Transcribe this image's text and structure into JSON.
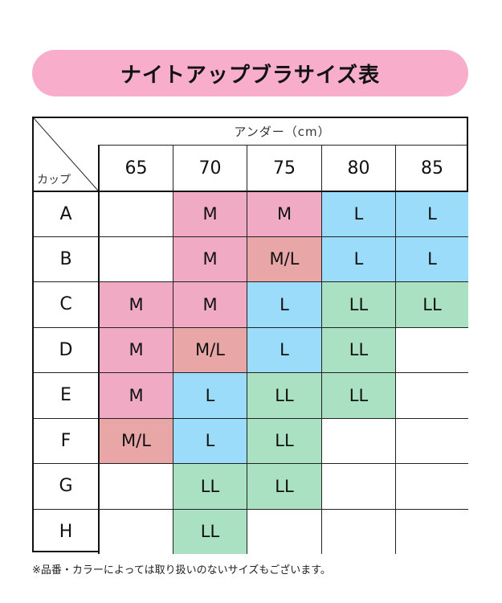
{
  "title": "ナイトアップブラサイズ表",
  "header": {
    "corner_label": "カップ",
    "under_label": "アンダー（cm）",
    "columns": [
      "65",
      "70",
      "75",
      "80",
      "85"
    ]
  },
  "rows": [
    {
      "cup": "A",
      "sizes": [
        "",
        "M",
        "M",
        "L",
        "L"
      ]
    },
    {
      "cup": "B",
      "sizes": [
        "",
        "M",
        "M/L",
        "L",
        "L"
      ]
    },
    {
      "cup": "C",
      "sizes": [
        "M",
        "M",
        "L",
        "LL",
        "LL"
      ]
    },
    {
      "cup": "D",
      "sizes": [
        "M",
        "M/L",
        "L",
        "LL",
        ""
      ]
    },
    {
      "cup": "E",
      "sizes": [
        "M",
        "L",
        "LL",
        "LL",
        ""
      ]
    },
    {
      "cup": "F",
      "sizes": [
        "M/L",
        "L",
        "LL",
        "",
        ""
      ]
    },
    {
      "cup": "G",
      "sizes": [
        "",
        "LL",
        "LL",
        "",
        ""
      ]
    },
    {
      "cup": "H",
      "sizes": [
        "",
        "LL",
        "",
        "",
        ""
      ]
    }
  ],
  "colors": {
    "banner": "#f8aecb",
    "M": "#f0aac4",
    "M/L": "#e8a6a6",
    "L": "#9adcfa",
    "LL": "#a9e1c2"
  },
  "note": "※品番・カラーによっては取り扱いのないサイズもございます。"
}
